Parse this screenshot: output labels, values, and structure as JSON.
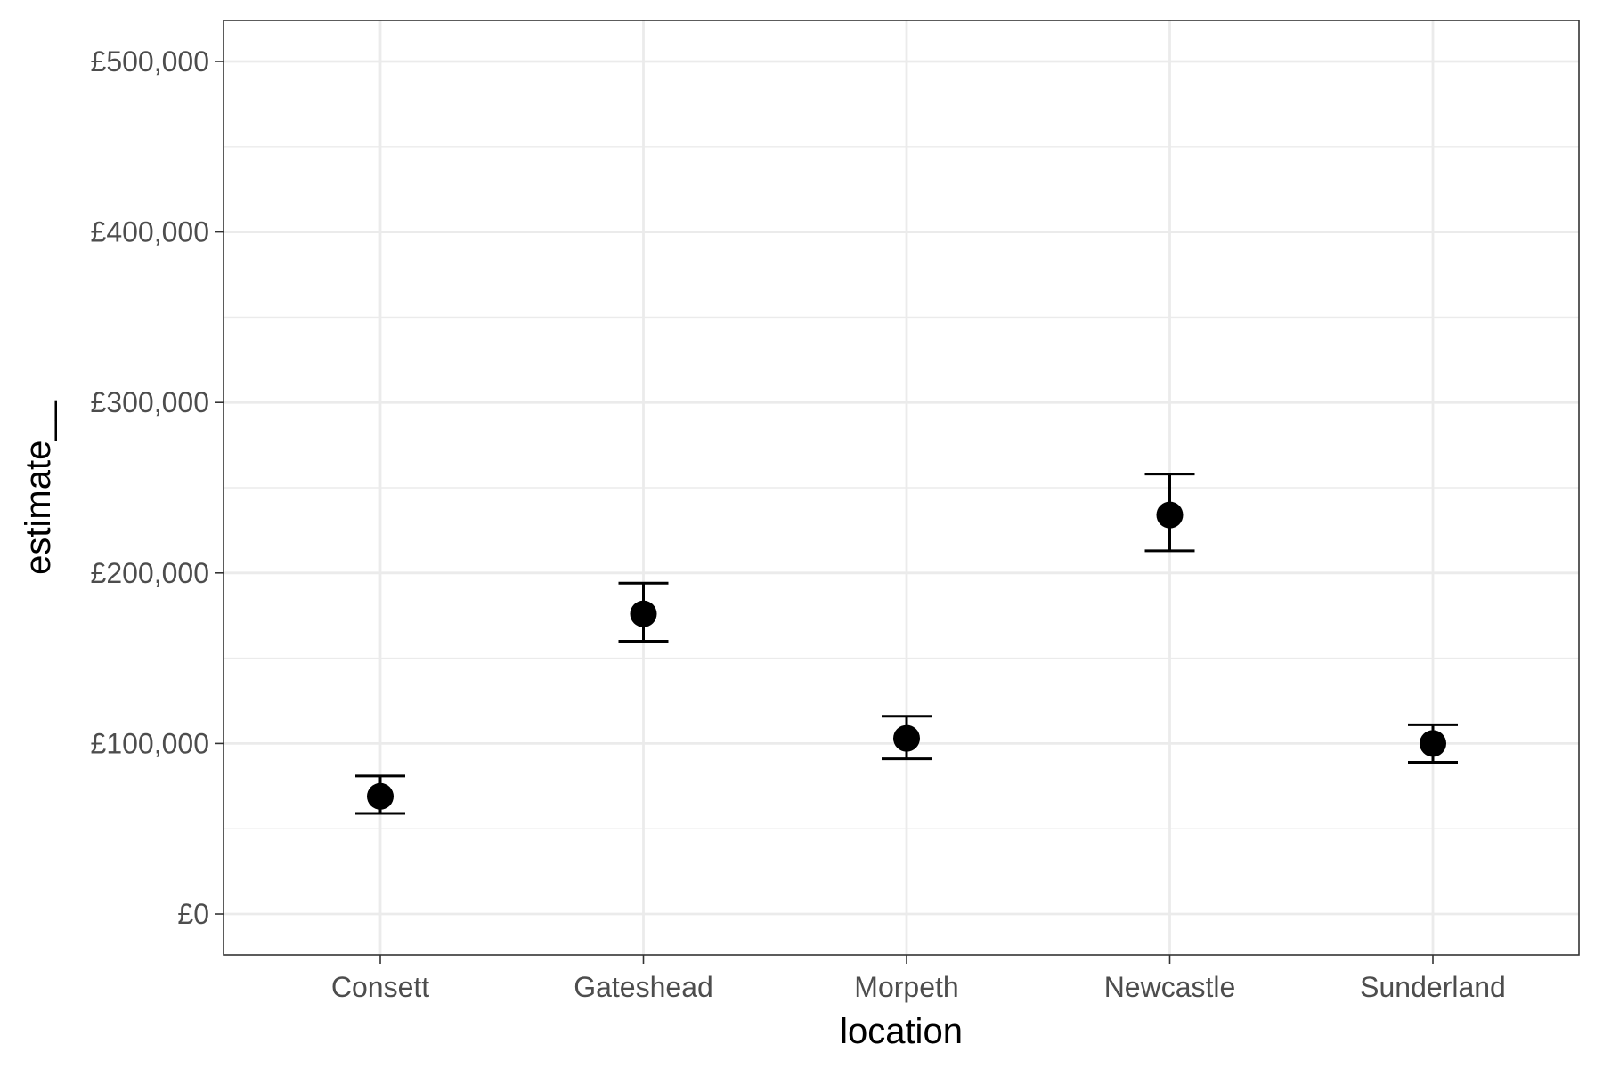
{
  "chart_data": {
    "type": "scatter",
    "error_bars": true,
    "xlabel": "location",
    "ylabel": "estimate__",
    "categories": [
      "Consett",
      "Gateshead",
      "Morpeth",
      "Newcastle",
      "Sunderland"
    ],
    "series": [
      {
        "values": [
          69000,
          176000,
          103000,
          234000,
          100000
        ],
        "lower": [
          59000,
          160000,
          91000,
          213000,
          89000
        ],
        "upper": [
          81000,
          194000,
          116000,
          258000,
          111000
        ]
      }
    ],
    "yticks": [
      0,
      100000,
      200000,
      300000,
      400000,
      500000
    ],
    "ytick_labels": [
      "£0",
      "£100,000",
      "£200,000",
      "£300,000",
      "£400,000",
      "£500,000"
    ],
    "ylim": [
      -24000,
      524000
    ],
    "grid": true,
    "legend": "none",
    "colors": {
      "points": "#000000",
      "grid": "#ebebeb",
      "panel_border": "#333333",
      "tick_text": "#4d4d4d"
    }
  }
}
